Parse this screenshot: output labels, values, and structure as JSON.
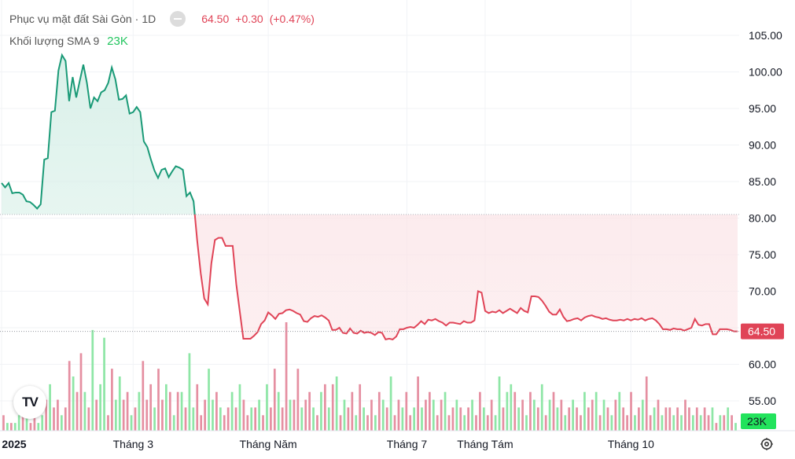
{
  "header": {
    "title": "Phục vụ mặt đất Sài Gòn",
    "separator": "·",
    "interval": "1D",
    "price": "64.50",
    "change": "+0.30",
    "change_pct": "(+0.47%)"
  },
  "volume_legend": {
    "label": "Khối lượng SMA 9",
    "value": "23K"
  },
  "badges": {
    "price": "64.50",
    "volume": "23K"
  },
  "logo_text": "TV",
  "icons": {
    "hide": "eye-toggle-icon",
    "logo": "tradingview-logo-icon",
    "settings": "gear-icon"
  },
  "colors": {
    "up": "#1a9a77",
    "down": "#e04457",
    "up_fill": "#d6efe7",
    "down_fill": "#fbe2e5",
    "vol_up": "#8ee6a6",
    "vol_down": "#e58fa1",
    "badge_green": "#22e35c"
  },
  "chart_data": {
    "type": "line",
    "baseline": 80.5,
    "ylim": [
      50.5,
      107
    ],
    "y_ticks": [
      105,
      100,
      95,
      90,
      85,
      80,
      75,
      70,
      65,
      60,
      55
    ],
    "y_tick_labels": [
      "105.00",
      "100.00",
      "95.00",
      "90.00",
      "85.00",
      "80.00",
      "75.00",
      "70.00",
      "65.00",
      "60.00",
      "55.00"
    ],
    "last_price": 64.5,
    "x_ticks": [
      {
        "label": "2025",
        "index": 0
      },
      {
        "label": "Tháng 3",
        "index": 37
      },
      {
        "label": "Tháng Năm",
        "index": 75
      },
      {
        "label": "Tháng 7",
        "index": 114
      },
      {
        "label": "Tháng Tám",
        "index": 136
      },
      {
        "label": "Tháng 10",
        "index": 177
      }
    ],
    "price": [
      84.8,
      84.2,
      84.8,
      83.4,
      83.5,
      83.5,
      83.2,
      82.3,
      82.2,
      81.8,
      81.3,
      81.9,
      88.0,
      88.2,
      94.5,
      94.7,
      100.2,
      102.3,
      101.5,
      96.0,
      99.3,
      96.5,
      98.8,
      101.0,
      98.5,
      95.0,
      96.5,
      96.0,
      97.2,
      97.5,
      98.5,
      100.6,
      99.0,
      96.2,
      96.3,
      96.8,
      94.3,
      94.5,
      95.2,
      94.5,
      90.5,
      89.7,
      88.0,
      86.5,
      85.5,
      86.6,
      86.8,
      85.6,
      86.4,
      87.1,
      86.9,
      86.6,
      83.0,
      83.5,
      82.3,
      77.0,
      72.5,
      69.0,
      68.2,
      73.8,
      77.0,
      77.3,
      77.3,
      76.2,
      76.2,
      76.2,
      71.0,
      67.2,
      63.5,
      63.5,
      63.5,
      63.9,
      64.4,
      65.5,
      66.0,
      67.1,
      66.7,
      66.2,
      66.9,
      67.0,
      67.4,
      67.5,
      67.3,
      67.0,
      66.8,
      65.9,
      65.8,
      66.3,
      66.6,
      66.5,
      66.7,
      66.4,
      66.0,
      64.7,
      64.7,
      65.0,
      64.3,
      64.2,
      64.9,
      64.3,
      64.2,
      64.6,
      64.3,
      64.4,
      64.3,
      64.0,
      64.4,
      64.3,
      63.4,
      63.5,
      63.4,
      63.8,
      64.8,
      64.8,
      65.0,
      65.1,
      65.0,
      65.4,
      65.9,
      65.5,
      66.1,
      66.0,
      66.2,
      65.9,
      65.7,
      65.3,
      65.7,
      65.7,
      65.6,
      65.5,
      65.9,
      65.7,
      65.7,
      66.0,
      70.0,
      69.8,
      67.3,
      67.0,
      67.2,
      67.1,
      67.4,
      67.0,
      67.3,
      67.6,
      67.3,
      67.0,
      67.7,
      67.3,
      67.1,
      69.3,
      69.3,
      69.2,
      68.7,
      68.0,
      67.2,
      66.8,
      66.8,
      67.5,
      66.5,
      65.9,
      66.0,
      66.2,
      66.3,
      66.0,
      66.4,
      66.6,
      66.7,
      66.5,
      66.4,
      66.2,
      66.3,
      66.1,
      66.0,
      66.0,
      66.1,
      66.0,
      66.2,
      66.0,
      66.2,
      66.1,
      66.3,
      66.0,
      66.2,
      66.3,
      66.0,
      65.5,
      64.8,
      64.8,
      64.7,
      64.9,
      64.8,
      64.8,
      64.6,
      64.8,
      65.0,
      66.2,
      65.4,
      65.3,
      65.5,
      65.5,
      64.1,
      64.1,
      64.8,
      64.8,
      64.8,
      64.7,
      64.5,
      64.5
    ],
    "volume": [
      {
        "v": 2,
        "up": false
      },
      {
        "v": 1,
        "up": true
      },
      {
        "v": 1,
        "up": false
      },
      {
        "v": 1,
        "up": true
      },
      {
        "v": 2,
        "up": true
      },
      {
        "v": 3,
        "up": false
      },
      {
        "v": 2,
        "up": true
      },
      {
        "v": 1,
        "up": false
      },
      {
        "v": 2,
        "up": false
      },
      {
        "v": 1,
        "up": true
      },
      {
        "v": 2,
        "up": true
      },
      {
        "v": 4,
        "up": false
      },
      {
        "v": 6,
        "up": true
      },
      {
        "v": 3,
        "up": false
      },
      {
        "v": 4,
        "up": false
      },
      {
        "v": 2,
        "up": true
      },
      {
        "v": 3,
        "up": false
      },
      {
        "v": 9,
        "up": false
      },
      {
        "v": 7,
        "up": true
      },
      {
        "v": 5,
        "up": false
      },
      {
        "v": 10,
        "up": false
      },
      {
        "v": 5,
        "up": true
      },
      {
        "v": 3,
        "up": false
      },
      {
        "v": 13,
        "up": true
      },
      {
        "v": 4,
        "up": false
      },
      {
        "v": 6,
        "up": true
      },
      {
        "v": 12,
        "up": true
      },
      {
        "v": 2,
        "up": false
      },
      {
        "v": 8,
        "up": false
      },
      {
        "v": 4,
        "up": true
      },
      {
        "v": 7,
        "up": true
      },
      {
        "v": 4,
        "up": false
      },
      {
        "v": 5,
        "up": false
      },
      {
        "v": 2,
        "up": true
      },
      {
        "v": 3,
        "up": false
      },
      {
        "v": 5,
        "up": true
      },
      {
        "v": 9,
        "up": false
      },
      {
        "v": 4,
        "up": false
      },
      {
        "v": 6,
        "up": false
      },
      {
        "v": 3,
        "up": true
      },
      {
        "v": 8,
        "up": false
      },
      {
        "v": 4,
        "up": false
      },
      {
        "v": 6,
        "up": true
      },
      {
        "v": 5,
        "up": false
      },
      {
        "v": 2,
        "up": true
      },
      {
        "v": 5,
        "up": false
      },
      {
        "v": 5,
        "up": true
      },
      {
        "v": 3,
        "up": false
      },
      {
        "v": 10,
        "up": true
      },
      {
        "v": 3,
        "up": true
      },
      {
        "v": 6,
        "up": false
      },
      {
        "v": 2,
        "up": false
      },
      {
        "v": 4,
        "up": false
      },
      {
        "v": 8,
        "up": true
      },
      {
        "v": 4,
        "up": true
      },
      {
        "v": 5,
        "up": false
      },
      {
        "v": 3,
        "up": true
      },
      {
        "v": 2,
        "up": false
      },
      {
        "v": 3,
        "up": false
      },
      {
        "v": 5,
        "up": true
      },
      {
        "v": 3,
        "up": false
      },
      {
        "v": 6,
        "up": true
      },
      {
        "v": 4,
        "up": false
      },
      {
        "v": 2,
        "up": false
      },
      {
        "v": 3,
        "up": true
      },
      {
        "v": 3,
        "up": false
      },
      {
        "v": 4,
        "up": true
      },
      {
        "v": 2,
        "up": false
      },
      {
        "v": 6,
        "up": true
      },
      {
        "v": 3,
        "up": false
      },
      {
        "v": 8,
        "up": false
      },
      {
        "v": 5,
        "up": true
      },
      {
        "v": 3,
        "up": false
      },
      {
        "v": 14,
        "up": false
      },
      {
        "v": 4,
        "up": true
      },
      {
        "v": 4,
        "up": false
      },
      {
        "v": 8,
        "up": false
      },
      {
        "v": 3,
        "up": true
      },
      {
        "v": 4,
        "up": false
      },
      {
        "v": 5,
        "up": false
      },
      {
        "v": 3,
        "up": true
      },
      {
        "v": 2,
        "up": false
      },
      {
        "v": 5,
        "up": true
      },
      {
        "v": 6,
        "up": false
      },
      {
        "v": 3,
        "up": true
      },
      {
        "v": 6,
        "up": false
      },
      {
        "v": 7,
        "up": true
      },
      {
        "v": 2,
        "up": false
      },
      {
        "v": 4,
        "up": true
      },
      {
        "v": 3,
        "up": false
      },
      {
        "v": 5,
        "up": false
      },
      {
        "v": 2,
        "up": true
      },
      {
        "v": 6,
        "up": false
      },
      {
        "v": 3,
        "up": true
      },
      {
        "v": 2,
        "up": false
      },
      {
        "v": 4,
        "up": false
      },
      {
        "v": 2,
        "up": true
      },
      {
        "v": 5,
        "up": false
      },
      {
        "v": 4,
        "up": true
      },
      {
        "v": 3,
        "up": false
      },
      {
        "v": 7,
        "up": true
      },
      {
        "v": 2,
        "up": false
      },
      {
        "v": 4,
        "up": false
      },
      {
        "v": 3,
        "up": true
      },
      {
        "v": 5,
        "up": false
      },
      {
        "v": 2,
        "up": false
      },
      {
        "v": 3,
        "up": true
      },
      {
        "v": 7,
        "up": false
      },
      {
        "v": 3,
        "up": true
      },
      {
        "v": 4,
        "up": false
      },
      {
        "v": 5,
        "up": false
      },
      {
        "v": 4,
        "up": true
      },
      {
        "v": 2,
        "up": false
      },
      {
        "v": 4,
        "up": false
      },
      {
        "v": 5,
        "up": true
      },
      {
        "v": 2,
        "up": false
      },
      {
        "v": 3,
        "up": false
      },
      {
        "v": 4,
        "up": true
      },
      {
        "v": 3,
        "up": false
      },
      {
        "v": 2,
        "up": true
      },
      {
        "v": 3,
        "up": false
      },
      {
        "v": 4,
        "up": true
      },
      {
        "v": 2,
        "up": false
      },
      {
        "v": 5,
        "up": false
      },
      {
        "v": 3,
        "up": true
      },
      {
        "v": 2,
        "up": false
      },
      {
        "v": 4,
        "up": false
      },
      {
        "v": 2,
        "up": true
      },
      {
        "v": 7,
        "up": true
      },
      {
        "v": 3,
        "up": false
      },
      {
        "v": 5,
        "up": true
      },
      {
        "v": 6,
        "up": true
      },
      {
        "v": 5,
        "up": false
      },
      {
        "v": 3,
        "up": true
      },
      {
        "v": 4,
        "up": false
      },
      {
        "v": 2,
        "up": true
      },
      {
        "v": 5,
        "up": false
      },
      {
        "v": 4,
        "up": true
      },
      {
        "v": 3,
        "up": false
      },
      {
        "v": 6,
        "up": true
      },
      {
        "v": 2,
        "up": false
      },
      {
        "v": 4,
        "up": true
      },
      {
        "v": 5,
        "up": false
      },
      {
        "v": 3,
        "up": true
      },
      {
        "v": 4,
        "up": false
      },
      {
        "v": 2,
        "up": true
      },
      {
        "v": 3,
        "up": false
      },
      {
        "v": 4,
        "up": true
      },
      {
        "v": 3,
        "up": false
      },
      {
        "v": 2,
        "up": false
      },
      {
        "v": 5,
        "up": true
      },
      {
        "v": 3,
        "up": false
      },
      {
        "v": 4,
        "up": false
      },
      {
        "v": 5,
        "up": true
      },
      {
        "v": 2,
        "up": false
      },
      {
        "v": 4,
        "up": true
      },
      {
        "v": 3,
        "up": false
      },
      {
        "v": 2,
        "up": true
      },
      {
        "v": 4,
        "up": false
      },
      {
        "v": 5,
        "up": true
      },
      {
        "v": 3,
        "up": false
      },
      {
        "v": 2,
        "up": false
      },
      {
        "v": 5,
        "up": false
      },
      {
        "v": 2,
        "up": true
      },
      {
        "v": 3,
        "up": false
      },
      {
        "v": 4,
        "up": true
      },
      {
        "v": 7,
        "up": false
      },
      {
        "v": 2,
        "up": false
      },
      {
        "v": 3,
        "up": true
      },
      {
        "v": 4,
        "up": false
      },
      {
        "v": 2,
        "up": true
      },
      {
        "v": 3,
        "up": false
      },
      {
        "v": 3,
        "up": false
      },
      {
        "v": 2,
        "up": true
      },
      {
        "v": 3,
        "up": false
      },
      {
        "v": 2,
        "up": true
      },
      {
        "v": 4,
        "up": false
      },
      {
        "v": 3,
        "up": false
      },
      {
        "v": 2,
        "up": true
      },
      {
        "v": 3,
        "up": false
      },
      {
        "v": 2,
        "up": true
      },
      {
        "v": 3,
        "up": false
      },
      {
        "v": 2,
        "up": false
      },
      {
        "v": 3,
        "up": true
      },
      {
        "v": 1,
        "up": false
      },
      {
        "v": 2,
        "up": true
      },
      {
        "v": 2,
        "up": false
      },
      {
        "v": 3,
        "up": true
      },
      {
        "v": 2,
        "up": false
      },
      {
        "v": 1,
        "up": true
      }
    ]
  }
}
